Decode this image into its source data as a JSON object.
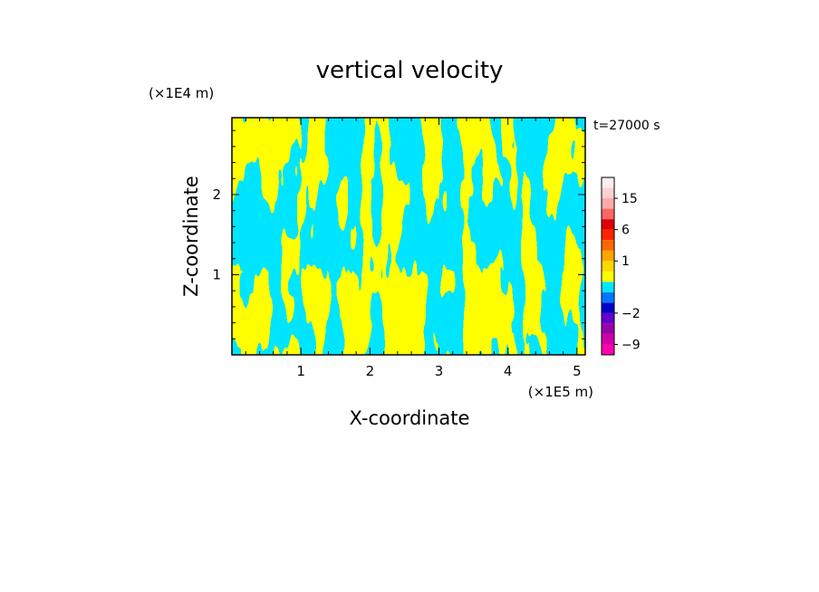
{
  "chart_data": {
    "type": "heatmap",
    "title": "vertical velocity",
    "xlabel": "X-coordinate",
    "ylabel": "Z-coordinate",
    "x_unit_label": "(×1E5 m)",
    "y_unit_label": "(×1E4 m)",
    "time_label": "t=27000 s",
    "xlim": [
      0,
      5.12
    ],
    "ylim": [
      0,
      2.96
    ],
    "x_ticks": [
      1,
      2,
      3,
      4,
      5
    ],
    "x_tick_labels": [
      "1",
      "2",
      "3",
      "4",
      "5"
    ],
    "y_ticks": [
      1,
      2
    ],
    "y_tick_labels": [
      "1",
      "2"
    ],
    "grid": false,
    "field_colors": {
      "positive": "#ffff00",
      "negative": "#00e5ff"
    },
    "colorbar": {
      "placement": "right",
      "levels": [
        -12,
        -9,
        -6,
        -4,
        -2,
        -1,
        -0.5,
        0,
        0.5,
        1,
        2,
        4,
        6,
        9,
        12,
        15,
        20,
        25
      ],
      "colors": [
        "#ff00aa",
        "#cc00aa",
        "#9900aa",
        "#6600cc",
        "#0000cc",
        "#0077ff",
        "#00e5ff",
        "#ffff00",
        "#ffd700",
        "#ffa500",
        "#ff6600",
        "#ff2200",
        "#dd0000",
        "#ff6666",
        "#ffaaaa",
        "#ffd0d0",
        "#ffeeee"
      ],
      "tick_values": [
        -9,
        -2,
        1,
        6,
        15
      ],
      "tick_labels": [
        "−9",
        "−2",
        "1",
        "6",
        "15"
      ]
    }
  }
}
